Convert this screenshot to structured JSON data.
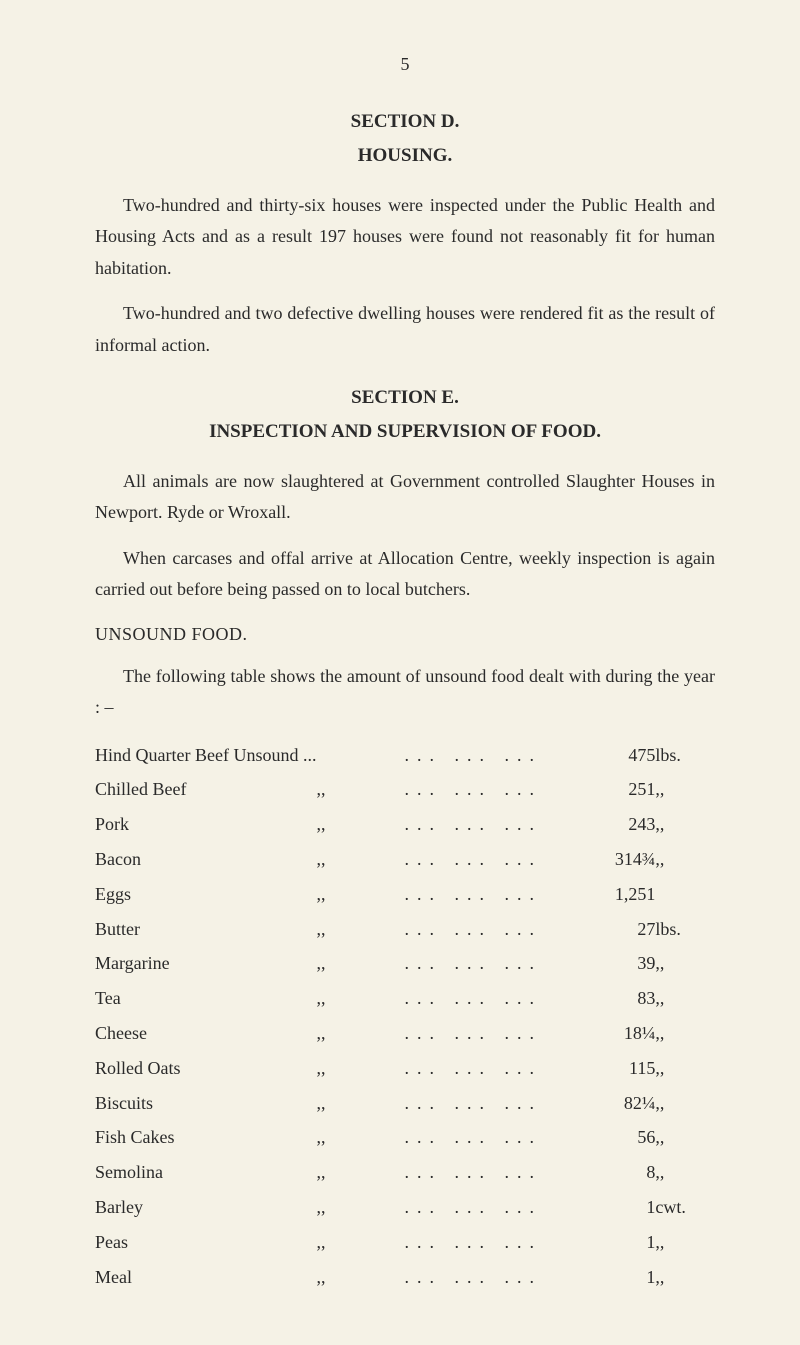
{
  "pageNumber": "5",
  "sectionD": {
    "heading": "SECTION D.",
    "subheading": "HOUSING.",
    "para1": "Two-hundred and thirty-six houses were inspected under the Public Health and Housing Acts and as a result 197 houses were found not reasonably fit for human habitation.",
    "para2": "Two-hundred and two defective dwelling houses were rendered fit as the result of informal action."
  },
  "sectionE": {
    "heading": "SECTION E.",
    "subheading": "INSPECTION AND SUPERVISION OF FOOD.",
    "para1": "All animals are now slaughtered at Government controlled Slaughter Houses in Newport. Ryde or Wroxall.",
    "para2": "When carcases and offal arrive at Allocation Centre, weekly inspection is again carried out before being passed on to local butchers.",
    "unsoundTitle": "UNSOUND FOOD.",
    "tableIntro": "The following table shows the amount of unsound food dealt with during the year : –",
    "rows": [
      {
        "name": "Hind Quarter Beef Unsound ...",
        "ditto": "",
        "amount": "475",
        "unit": "lbs."
      },
      {
        "name": "Chilled Beef",
        "ditto": ",,",
        "amount": "251",
        "unit": ",,"
      },
      {
        "name": "Pork",
        "ditto": ",,",
        "amount": "243",
        "unit": ",,"
      },
      {
        "name": "Bacon",
        "ditto": ",,",
        "amount": "314¾",
        "unit": ",,"
      },
      {
        "name": "Eggs",
        "ditto": ",,",
        "amount": "1,251",
        "unit": ""
      },
      {
        "name": "Butter",
        "ditto": ",,",
        "amount": "27",
        "unit": "lbs."
      },
      {
        "name": "Margarine",
        "ditto": ",,",
        "amount": "39",
        "unit": ",,"
      },
      {
        "name": "Tea",
        "ditto": ",,",
        "amount": "83",
        "unit": ",,"
      },
      {
        "name": "Cheese",
        "ditto": ",,",
        "amount": "18¼",
        "unit": ",,"
      },
      {
        "name": "Rolled Oats",
        "ditto": ",,",
        "amount": "115",
        "unit": ",,"
      },
      {
        "name": "Biscuits",
        "ditto": ",,",
        "amount": "82¼",
        "unit": ",,"
      },
      {
        "name": "Fish Cakes",
        "ditto": ",,",
        "amount": "56",
        "unit": ",,"
      },
      {
        "name": "Semolina",
        "ditto": ",,",
        "amount": "8",
        "unit": ",,"
      },
      {
        "name": "Barley",
        "ditto": ",,",
        "amount": "1",
        "unit": "cwt."
      },
      {
        "name": "Peas",
        "ditto": ",,",
        "amount": "1",
        "unit": ",,"
      },
      {
        "name": "Meal",
        "ditto": ",,",
        "amount": "1",
        "unit": ",,"
      }
    ]
  }
}
